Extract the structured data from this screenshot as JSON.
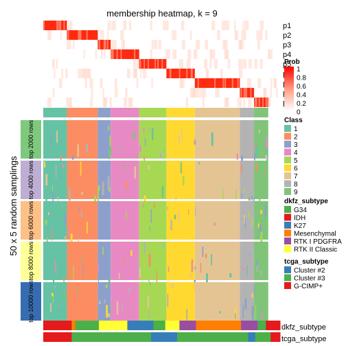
{
  "chart_data": {
    "type": "heatmap",
    "title": "membership heatmap, k = 9",
    "ylabel": "50 x 5 random samplings",
    "top_rows": [
      "p1",
      "p2",
      "p3",
      "p4",
      "p5",
      "p6",
      "p7",
      "p8",
      "p9"
    ],
    "class_bar_label": "Class",
    "bottom_annotations": [
      "dkfz_subtype",
      "tcga_subtype"
    ],
    "row_groups": [
      {
        "label": "top 2000 rows",
        "color": "#7fc97f"
      },
      {
        "label": "top 4000 rows",
        "color": "#beaed4"
      },
      {
        "label": "top 6000 rows",
        "color": "#fdc086"
      },
      {
        "label": "top 8000 rows",
        "color": "#ffff99"
      },
      {
        "label": "top 10000 rows",
        "color": "#386cb0"
      }
    ],
    "column_classes": [
      {
        "class": "1",
        "fraction": 0.1
      },
      {
        "class": "2",
        "fraction": 0.13
      },
      {
        "class": "3",
        "fraction": 0.055
      },
      {
        "class": "4",
        "fraction": 0.12
      },
      {
        "class": "5",
        "fraction": 0.115
      },
      {
        "class": "6",
        "fraction": 0.12
      },
      {
        "class": "7",
        "fraction": 0.19
      },
      {
        "class": "8",
        "fraction": 0.06
      },
      {
        "class": "9",
        "fraction": 0.06
      }
    ],
    "dkfz_segments": [
      {
        "subtype": "IDH",
        "fraction": 0.12
      },
      {
        "subtype": "Mesenchymal",
        "fraction": 0.015
      },
      {
        "subtype": "G34",
        "fraction": 0.1
      },
      {
        "subtype": "RTK II Classic",
        "fraction": 0.12
      },
      {
        "subtype": "K27",
        "fraction": 0.11
      },
      {
        "subtype": "G34",
        "fraction": 0.05
      },
      {
        "subtype": "RTK II Classic",
        "fraction": 0.06
      },
      {
        "subtype": "RTK I PDGFRA",
        "fraction": 0.07
      },
      {
        "subtype": "Mesenchymal",
        "fraction": 0.19
      },
      {
        "subtype": "RTK I PDGFRA",
        "fraction": 0.07
      },
      {
        "subtype": "G34",
        "fraction": 0.035
      },
      {
        "subtype": "IDH",
        "fraction": 0.06
      }
    ],
    "tcga_segments": [
      {
        "subtype": "G-CIMP+",
        "fraction": 0.12
      },
      {
        "subtype": "Cluster #3",
        "fraction": 0.335
      },
      {
        "subtype": "Cluster #2",
        "fraction": 0.11
      },
      {
        "subtype": "Cluster #3",
        "fraction": 0.3
      },
      {
        "subtype": "Cluster #2",
        "fraction": 0.03
      },
      {
        "subtype": "Cluster #3",
        "fraction": 0.065
      },
      {
        "subtype": "G-CIMP+",
        "fraction": 0.04
      }
    ],
    "prob_legend": {
      "title": "Prob",
      "ticks": [
        "1",
        "0.8",
        "0.6",
        "0.4",
        "0.2",
        "0"
      ]
    }
  },
  "legends": {
    "class": {
      "title": "Class",
      "items": [
        {
          "label": "1",
          "color": "#66c2a5"
        },
        {
          "label": "2",
          "color": "#fc8d62"
        },
        {
          "label": "3",
          "color": "#8da0cb"
        },
        {
          "label": "4",
          "color": "#e78ac3"
        },
        {
          "label": "5",
          "color": "#a6d854"
        },
        {
          "label": "6",
          "color": "#ffd92f"
        },
        {
          "label": "7",
          "color": "#e5c494"
        },
        {
          "label": "8",
          "color": "#b3b3b3"
        },
        {
          "label": "9",
          "color": "#80c47a"
        }
      ]
    },
    "dkfz_subtype": {
      "title": "dkfz_subtype",
      "items": [
        {
          "label": "G34",
          "color": "#4daf4a"
        },
        {
          "label": "IDH",
          "color": "#e41a1c"
        },
        {
          "label": "K27",
          "color": "#377eb8"
        },
        {
          "label": "Mesenchymal",
          "color": "#ff7f00"
        },
        {
          "label": "RTK I PDGFRA",
          "color": "#984ea3"
        },
        {
          "label": "RTK II Classic",
          "color": "#ffff33"
        }
      ]
    },
    "tcga_subtype": {
      "title": "tcga_subtype",
      "items": [
        {
          "label": "Cluster #2",
          "color": "#377eb8"
        },
        {
          "label": "Cluster #3",
          "color": "#4daf4a"
        },
        {
          "label": "G-CIMP+",
          "color": "#e41a1c"
        }
      ]
    }
  }
}
